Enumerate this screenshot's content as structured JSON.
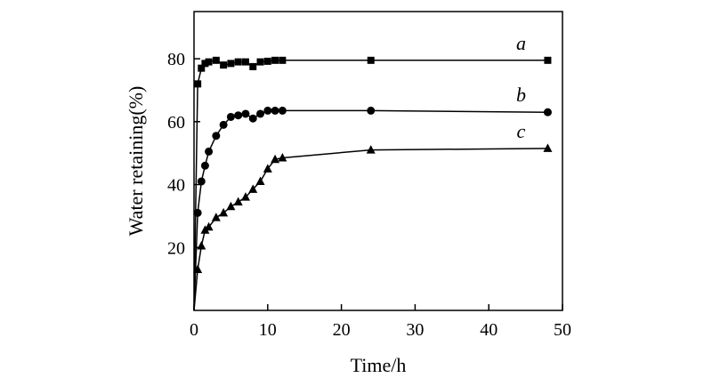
{
  "chart_data": {
    "type": "line",
    "title": "",
    "xlabel": "Time/h",
    "ylabel": "Water retaining(%)",
    "xlim": [
      0,
      50
    ],
    "ylim": [
      0,
      95
    ],
    "x_ticks": [
      0,
      10,
      20,
      30,
      40,
      50
    ],
    "y_ticks": [
      20,
      40,
      60,
      80
    ],
    "grid": false,
    "legend": "none",
    "series": [
      {
        "name": "a",
        "marker": "square",
        "color": "#000000",
        "points": [
          [
            0,
            0
          ],
          [
            0.5,
            72
          ],
          [
            1,
            77
          ],
          [
            1.5,
            78.5
          ],
          [
            2,
            79
          ],
          [
            3,
            79.5
          ],
          [
            4,
            78
          ],
          [
            5,
            78.5
          ],
          [
            6,
            79
          ],
          [
            7,
            79
          ],
          [
            8,
            77.5
          ],
          [
            9,
            79
          ],
          [
            10,
            79.2
          ],
          [
            11,
            79.5
          ],
          [
            12,
            79.5
          ],
          [
            24,
            79.5
          ],
          [
            48,
            79.5
          ]
        ]
      },
      {
        "name": "b",
        "marker": "circle",
        "color": "#000000",
        "points": [
          [
            0,
            0
          ],
          [
            0.5,
            31
          ],
          [
            1,
            41
          ],
          [
            1.5,
            46
          ],
          [
            2,
            50.5
          ],
          [
            3,
            55.5
          ],
          [
            4,
            59
          ],
          [
            5,
            61.5
          ],
          [
            6,
            62
          ],
          [
            7,
            62.5
          ],
          [
            8,
            61
          ],
          [
            9,
            62.5
          ],
          [
            10,
            63.5
          ],
          [
            11,
            63.5
          ],
          [
            12,
            63.5
          ],
          [
            24,
            63.5
          ],
          [
            48,
            63
          ]
        ]
      },
      {
        "name": "c",
        "marker": "triangle",
        "color": "#000000",
        "points": [
          [
            0,
            0
          ],
          [
            0.5,
            13
          ],
          [
            1,
            20.5
          ],
          [
            1.5,
            25.5
          ],
          [
            2,
            26.5
          ],
          [
            3,
            29.5
          ],
          [
            4,
            31
          ],
          [
            5,
            33
          ],
          [
            6,
            34.5
          ],
          [
            7,
            36
          ],
          [
            8,
            38.5
          ],
          [
            9,
            41
          ],
          [
            10,
            45
          ],
          [
            11,
            48
          ],
          [
            12,
            48.5
          ],
          [
            24,
            51
          ],
          [
            48,
            51.5
          ]
        ]
      }
    ]
  }
}
